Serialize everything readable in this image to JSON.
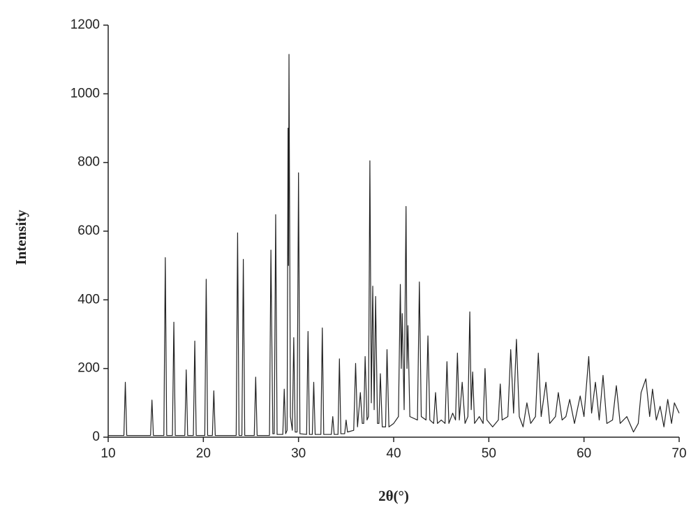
{
  "chart_data": {
    "type": "line",
    "x_label": "2θ(°)",
    "y_label": "Intensity",
    "x": [
      10,
      11.65,
      11.8,
      11.95,
      14.45,
      14.6,
      14.75,
      15.85,
      16.0,
      16.15,
      16.75,
      16.9,
      17.05,
      18.05,
      18.2,
      18.35,
      18.95,
      19.1,
      19.25,
      20.15,
      20.3,
      20.45,
      20.95,
      21.1,
      21.25,
      23.45,
      23.6,
      23.75,
      24.05,
      24.2,
      24.35,
      25.35,
      25.5,
      25.65,
      26.95,
      27.1,
      27.3,
      27.45,
      27.6,
      27.75,
      28.35,
      28.5,
      28.65,
      28.8,
      28.9,
      28.95,
      29.0,
      29.15,
      29.35,
      29.5,
      29.65,
      29.85,
      30.0,
      30.15,
      30.85,
      31.0,
      31.15,
      31.45,
      31.6,
      31.75,
      32.35,
      32.5,
      32.65,
      33.45,
      33.6,
      33.75,
      34.15,
      34.3,
      34.45,
      34.85,
      35.0,
      35.15,
      35.8,
      36.0,
      36.2,
      36.5,
      36.7,
      36.85,
      37.0,
      37.2,
      37.35,
      37.5,
      37.65,
      37.8,
      37.95,
      38.1,
      38.3,
      38.45,
      38.6,
      38.8,
      39.15,
      39.3,
      39.5,
      40.0,
      40.5,
      40.7,
      40.8,
      40.9,
      41.1,
      41.3,
      41.4,
      41.5,
      41.7,
      42.5,
      42.7,
      42.9,
      43.4,
      43.6,
      43.8,
      44.2,
      44.4,
      44.6,
      45.0,
      45.4,
      45.6,
      45.8,
      46.2,
      46.5,
      46.7,
      46.9,
      47.2,
      47.5,
      47.8,
      48.0,
      48.15,
      48.3,
      48.5,
      49.0,
      49.4,
      49.6,
      49.8,
      50.4,
      51.0,
      51.2,
      51.4,
      52.0,
      52.3,
      52.6,
      52.9,
      53.2,
      53.6,
      54.0,
      54.4,
      54.9,
      55.2,
      55.5,
      56.0,
      56.4,
      57.0,
      57.3,
      57.7,
      58.1,
      58.5,
      59.0,
      59.6,
      60.0,
      60.5,
      60.8,
      61.2,
      61.6,
      62.0,
      62.4,
      63.0,
      63.4,
      63.8,
      64.5,
      65.2,
      65.7,
      66.0,
      66.5,
      66.9,
      67.2,
      67.6,
      68.0,
      68.4,
      68.8,
      69.2,
      69.5,
      70.0
    ],
    "values": [
      5,
      5,
      160,
      5,
      5,
      108,
      5,
      5,
      523,
      5,
      5,
      335,
      5,
      5,
      196,
      5,
      5,
      280,
      5,
      5,
      460,
      5,
      5,
      135,
      5,
      5,
      595,
      5,
      5,
      518,
      5,
      5,
      175,
      5,
      5,
      545,
      10,
      10,
      648,
      8,
      8,
      140,
      10,
      20,
      900,
      500,
      1115,
      60,
      20,
      290,
      15,
      15,
      770,
      10,
      8,
      308,
      8,
      8,
      160,
      8,
      8,
      318,
      8,
      8,
      60,
      8,
      8,
      228,
      10,
      10,
      50,
      15,
      20,
      215,
      30,
      130,
      40,
      40,
      235,
      50,
      60,
      805,
      100,
      440,
      80,
      410,
      40,
      40,
      185,
      30,
      30,
      255,
      30,
      40,
      60,
      445,
      200,
      360,
      80,
      672,
      200,
      325,
      60,
      50,
      452,
      60,
      50,
      295,
      50,
      40,
      130,
      40,
      50,
      40,
      220,
      40,
      70,
      50,
      245,
      50,
      160,
      40,
      60,
      365,
      80,
      190,
      40,
      60,
      40,
      200,
      50,
      30,
      50,
      155,
      50,
      60,
      255,
      70,
      285,
      60,
      30,
      100,
      40,
      60,
      245,
      60,
      160,
      40,
      60,
      130,
      50,
      60,
      110,
      40,
      120,
      60,
      235,
      70,
      160,
      50,
      180,
      40,
      50,
      150,
      40,
      60,
      15,
      40,
      130,
      170,
      60,
      140,
      50,
      90,
      30,
      110,
      40,
      100,
      70
    ],
    "color": "#222222",
    "xlim": [
      10,
      70
    ],
    "xticks": [
      10,
      20,
      30,
      40,
      50,
      60,
      70
    ],
    "ylim": [
      0,
      1200
    ],
    "yticks": [
      0,
      200,
      400,
      600,
      800,
      1000,
      1200
    ]
  }
}
